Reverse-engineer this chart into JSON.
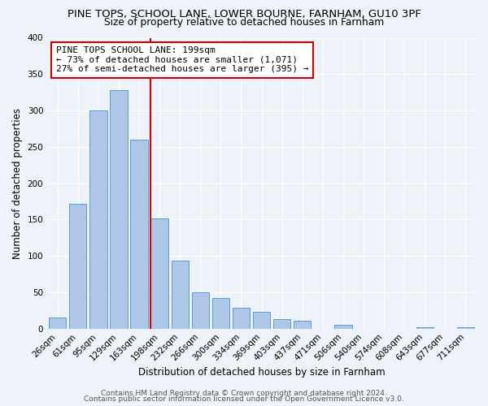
{
  "title": "PINE TOPS, SCHOOL LANE, LOWER BOURNE, FARNHAM, GU10 3PF",
  "subtitle": "Size of property relative to detached houses in Farnham",
  "xlabel": "Distribution of detached houses by size in Farnham",
  "ylabel": "Number of detached properties",
  "bar_labels": [
    "26sqm",
    "61sqm",
    "95sqm",
    "129sqm",
    "163sqm",
    "198sqm",
    "232sqm",
    "266sqm",
    "300sqm",
    "334sqm",
    "369sqm",
    "403sqm",
    "437sqm",
    "471sqm",
    "506sqm",
    "540sqm",
    "574sqm",
    "608sqm",
    "643sqm",
    "677sqm",
    "711sqm"
  ],
  "bar_values": [
    15,
    172,
    300,
    328,
    260,
    152,
    93,
    50,
    42,
    29,
    23,
    13,
    11,
    0,
    5,
    0,
    0,
    0,
    2,
    0,
    2
  ],
  "bar_color": "#aec6e8",
  "bar_edge_color": "#5b9bd5",
  "highlight_line_color": "#cc0000",
  "annotation_title": "PINE TOPS SCHOOL LANE: 199sqm",
  "annotation_line1": "← 73% of detached houses are smaller (1,071)",
  "annotation_line2": "27% of semi-detached houses are larger (395) →",
  "annotation_box_color": "#ffffff",
  "annotation_box_edge_color": "#cc0000",
  "ylim": [
    0,
    400
  ],
  "yticks": [
    0,
    50,
    100,
    150,
    200,
    250,
    300,
    350,
    400
  ],
  "footer1": "Contains HM Land Registry data © Crown copyright and database right 2024.",
  "footer2": "Contains public sector information licensed under the Open Government Licence v3.0.",
  "background_color": "#eef2f9",
  "grid_color": "#ffffff",
  "title_fontsize": 9.5,
  "subtitle_fontsize": 8.8,
  "axis_label_fontsize": 8.5,
  "tick_fontsize": 7.5,
  "annotation_fontsize": 8,
  "footer_fontsize": 6.5
}
